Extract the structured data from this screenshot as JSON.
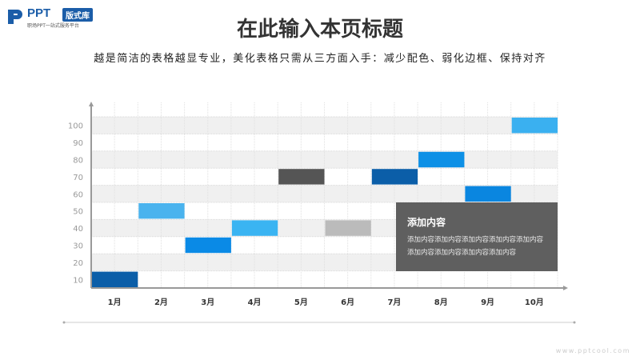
{
  "logo": {
    "brand": "PPT",
    "badge": "版式库",
    "tagline": "职场PPT一站式服务平台"
  },
  "header": {
    "title": "在此输入本页标题",
    "subtitle": "越是简洁的表格越显专业，美化表格只需从三方面入手：减少配色、弱化边框、保持对齐"
  },
  "chart_data": {
    "type": "bar",
    "categories": [
      "1月",
      "2月",
      "3月",
      "4月",
      "5月",
      "6月",
      "7月",
      "8月",
      "9月",
      "10月"
    ],
    "values": [
      10,
      50,
      30,
      40,
      70,
      40,
      70,
      80,
      60,
      100
    ],
    "colors": [
      "#0b5ea8",
      "#4ab3ee",
      "#0a8ae6",
      "#3ab4f2",
      "#555555",
      "#bbbbbb",
      "#0b5ea8",
      "#0d90e6",
      "#0a86e0",
      "#3ab0f0"
    ],
    "yticks": [
      10,
      20,
      30,
      40,
      50,
      60,
      70,
      80,
      90,
      100
    ],
    "ylim": [
      0,
      100
    ],
    "grid": true,
    "title": "",
    "xlabel": "",
    "ylabel": ""
  },
  "textbox": {
    "title": "添加内容",
    "body": "添加内容添加内容添加内容添加内容添加内容添加内容添加内容添加内容添加内容"
  },
  "watermark": "www.pptcool.com"
}
